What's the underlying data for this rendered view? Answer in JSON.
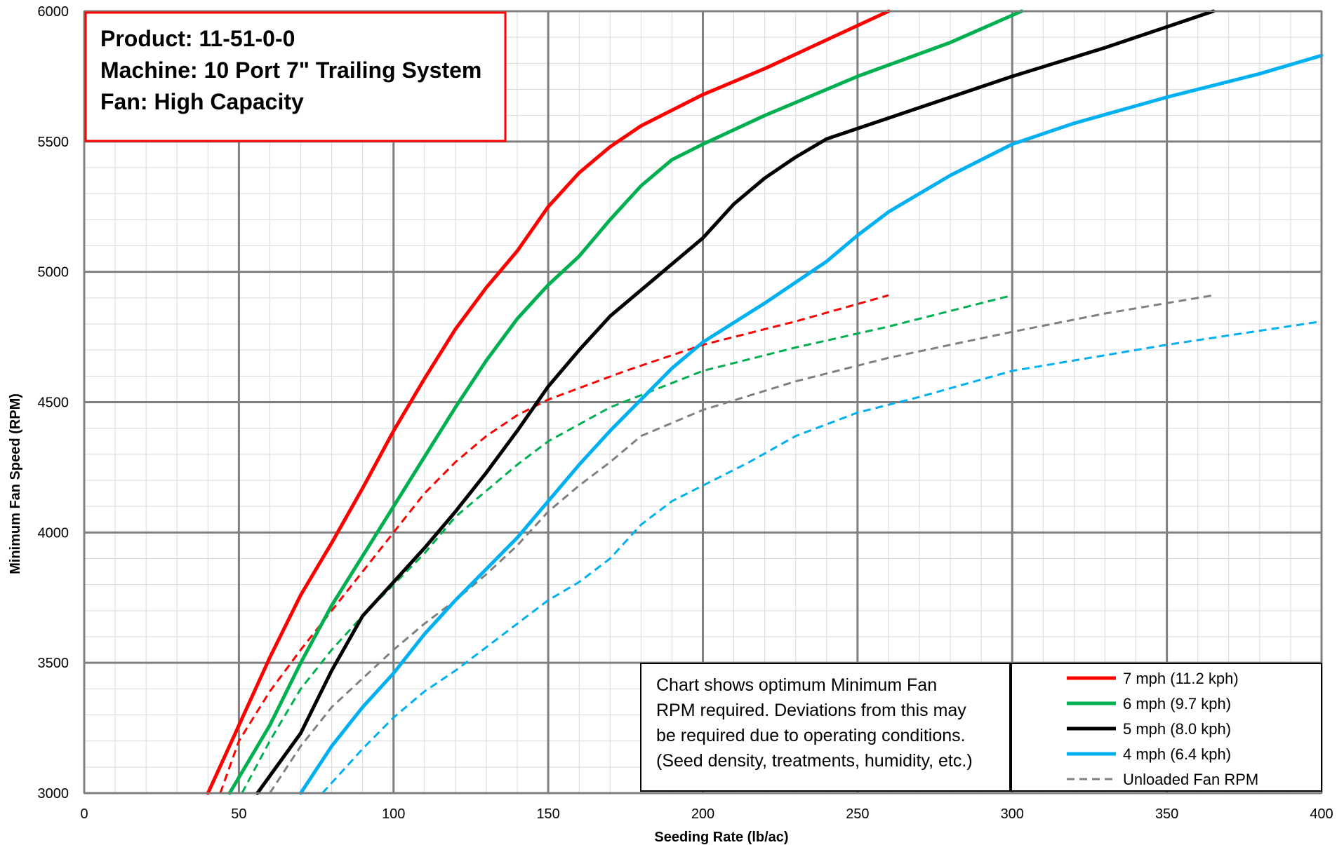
{
  "info_box": {
    "lines": [
      "Product:  11-51-0-0",
      "Machine: 10 Port 7\" Trailing System",
      "Fan:  High Capacity"
    ]
  },
  "note_box": {
    "lines": [
      "Chart shows optimum Minimum Fan",
      "RPM required.  Deviations from this may",
      "be required due to operating conditions.",
      "(Seed density, treatments, humidity, etc.)"
    ]
  },
  "chart_data": {
    "type": "line",
    "xlabel": "Seeding Rate (lb/ac)",
    "ylabel": "Minimum Fan Speed (RPM)",
    "xlim": [
      0,
      400
    ],
    "ylim": [
      3000,
      6000
    ],
    "x_ticks": [
      0,
      50,
      100,
      150,
      200,
      250,
      300,
      350,
      400
    ],
    "y_ticks": [
      3000,
      3500,
      4000,
      4500,
      5000,
      5500,
      6000
    ],
    "x_minor_step": 10,
    "y_minor_step": 100,
    "grid": true,
    "legend_position": "bottom-right",
    "colors": {
      "red": "#ff0000",
      "green": "#00b050",
      "black": "#000000",
      "blue": "#00b0f0",
      "gray": "#808080"
    },
    "series": [
      {
        "name": "7 mph (11.2 kph)",
        "color": "#ff0000",
        "style": "solid",
        "points": [
          [
            40,
            3000
          ],
          [
            50,
            3260
          ],
          [
            60,
            3520
          ],
          [
            70,
            3760
          ],
          [
            80,
            3960
          ],
          [
            90,
            4170
          ],
          [
            100,
            4390
          ],
          [
            110,
            4590
          ],
          [
            120,
            4780
          ],
          [
            130,
            4940
          ],
          [
            140,
            5080
          ],
          [
            150,
            5250
          ],
          [
            160,
            5380
          ],
          [
            170,
            5480
          ],
          [
            180,
            5560
          ],
          [
            200,
            5680
          ],
          [
            220,
            5780
          ],
          [
            240,
            5890
          ],
          [
            260,
            6000
          ]
        ]
      },
      {
        "name": "6 mph (9.7 kph)",
        "color": "#00b050",
        "style": "solid",
        "points": [
          [
            47,
            3000
          ],
          [
            60,
            3260
          ],
          [
            70,
            3500
          ],
          [
            80,
            3720
          ],
          [
            90,
            3910
          ],
          [
            100,
            4100
          ],
          [
            110,
            4290
          ],
          [
            120,
            4480
          ],
          [
            130,
            4660
          ],
          [
            140,
            4820
          ],
          [
            150,
            4950
          ],
          [
            160,
            5060
          ],
          [
            170,
            5200
          ],
          [
            180,
            5330
          ],
          [
            190,
            5430
          ],
          [
            200,
            5490
          ],
          [
            220,
            5600
          ],
          [
            250,
            5750
          ],
          [
            280,
            5880
          ],
          [
            303,
            6000
          ]
        ]
      },
      {
        "name": "5 mph (8.0 kph)",
        "color": "#000000",
        "style": "solid",
        "points": [
          [
            56,
            3000
          ],
          [
            70,
            3230
          ],
          [
            80,
            3470
          ],
          [
            90,
            3680
          ],
          [
            100,
            3810
          ],
          [
            110,
            3940
          ],
          [
            120,
            4080
          ],
          [
            130,
            4230
          ],
          [
            140,
            4390
          ],
          [
            150,
            4560
          ],
          [
            160,
            4700
          ],
          [
            170,
            4830
          ],
          [
            180,
            4930
          ],
          [
            190,
            5030
          ],
          [
            200,
            5130
          ],
          [
            210,
            5260
          ],
          [
            220,
            5360
          ],
          [
            230,
            5440
          ],
          [
            240,
            5510
          ],
          [
            260,
            5590
          ],
          [
            280,
            5670
          ],
          [
            300,
            5750
          ],
          [
            330,
            5860
          ],
          [
            365,
            6000
          ]
        ]
      },
      {
        "name": "4 mph (6.4 kph)",
        "color": "#00b0f0",
        "style": "solid",
        "points": [
          [
            70,
            3000
          ],
          [
            80,
            3180
          ],
          [
            90,
            3330
          ],
          [
            100,
            3460
          ],
          [
            110,
            3610
          ],
          [
            120,
            3740
          ],
          [
            130,
            3860
          ],
          [
            140,
            3980
          ],
          [
            150,
            4120
          ],
          [
            160,
            4260
          ],
          [
            170,
            4390
          ],
          [
            180,
            4510
          ],
          [
            190,
            4630
          ],
          [
            200,
            4730
          ],
          [
            220,
            4880
          ],
          [
            240,
            5040
          ],
          [
            250,
            5140
          ],
          [
            260,
            5230
          ],
          [
            280,
            5370
          ],
          [
            300,
            5490
          ],
          [
            320,
            5570
          ],
          [
            350,
            5670
          ],
          [
            380,
            5760
          ],
          [
            400,
            5830
          ]
        ]
      },
      {
        "name": "7 mph (11.2 kph)",
        "color": "#ff0000",
        "style": "dashed",
        "show_in_legend": false,
        "points": [
          [
            44,
            3000
          ],
          [
            50,
            3200
          ],
          [
            60,
            3390
          ],
          [
            70,
            3550
          ],
          [
            80,
            3700
          ],
          [
            90,
            3850
          ],
          [
            100,
            4000
          ],
          [
            110,
            4150
          ],
          [
            120,
            4270
          ],
          [
            130,
            4370
          ],
          [
            140,
            4450
          ],
          [
            150,
            4510
          ],
          [
            175,
            4620
          ],
          [
            200,
            4720
          ],
          [
            230,
            4810
          ],
          [
            260,
            4910
          ]
        ]
      },
      {
        "name": "6 mph (9.7 kph)",
        "color": "#00b050",
        "style": "dashed",
        "show_in_legend": false,
        "points": [
          [
            51,
            3000
          ],
          [
            60,
            3200
          ],
          [
            70,
            3400
          ],
          [
            80,
            3550
          ],
          [
            90,
            3680
          ],
          [
            100,
            3800
          ],
          [
            110,
            3920
          ],
          [
            120,
            4060
          ],
          [
            130,
            4160
          ],
          [
            140,
            4260
          ],
          [
            150,
            4350
          ],
          [
            170,
            4480
          ],
          [
            200,
            4620
          ],
          [
            230,
            4710
          ],
          [
            260,
            4790
          ],
          [
            300,
            4910
          ]
        ]
      },
      {
        "name": "Unloaded Fan RPM",
        "color": "#808080",
        "style": "dashed",
        "points": [
          [
            60,
            3000
          ],
          [
            70,
            3180
          ],
          [
            80,
            3330
          ],
          [
            90,
            3440
          ],
          [
            100,
            3550
          ],
          [
            110,
            3650
          ],
          [
            120,
            3740
          ],
          [
            130,
            3840
          ],
          [
            140,
            3950
          ],
          [
            150,
            4080
          ],
          [
            160,
            4180
          ],
          [
            170,
            4270
          ],
          [
            180,
            4370
          ],
          [
            190,
            4420
          ],
          [
            200,
            4470
          ],
          [
            230,
            4580
          ],
          [
            260,
            4670
          ],
          [
            300,
            4770
          ],
          [
            330,
            4840
          ],
          [
            365,
            4910
          ]
        ]
      },
      {
        "name": "4 mph (6.4 kph)",
        "color": "#00b0f0",
        "style": "dashed",
        "show_in_legend": false,
        "points": [
          [
            77,
            3000
          ],
          [
            90,
            3170
          ],
          [
            100,
            3290
          ],
          [
            110,
            3390
          ],
          [
            120,
            3470
          ],
          [
            130,
            3560
          ],
          [
            140,
            3650
          ],
          [
            150,
            3740
          ],
          [
            160,
            3810
          ],
          [
            170,
            3900
          ],
          [
            180,
            4030
          ],
          [
            190,
            4120
          ],
          [
            200,
            4180
          ],
          [
            215,
            4270
          ],
          [
            230,
            4370
          ],
          [
            250,
            4460
          ],
          [
            270,
            4520
          ],
          [
            300,
            4620
          ],
          [
            350,
            4720
          ],
          [
            400,
            4810
          ]
        ]
      }
    ]
  }
}
